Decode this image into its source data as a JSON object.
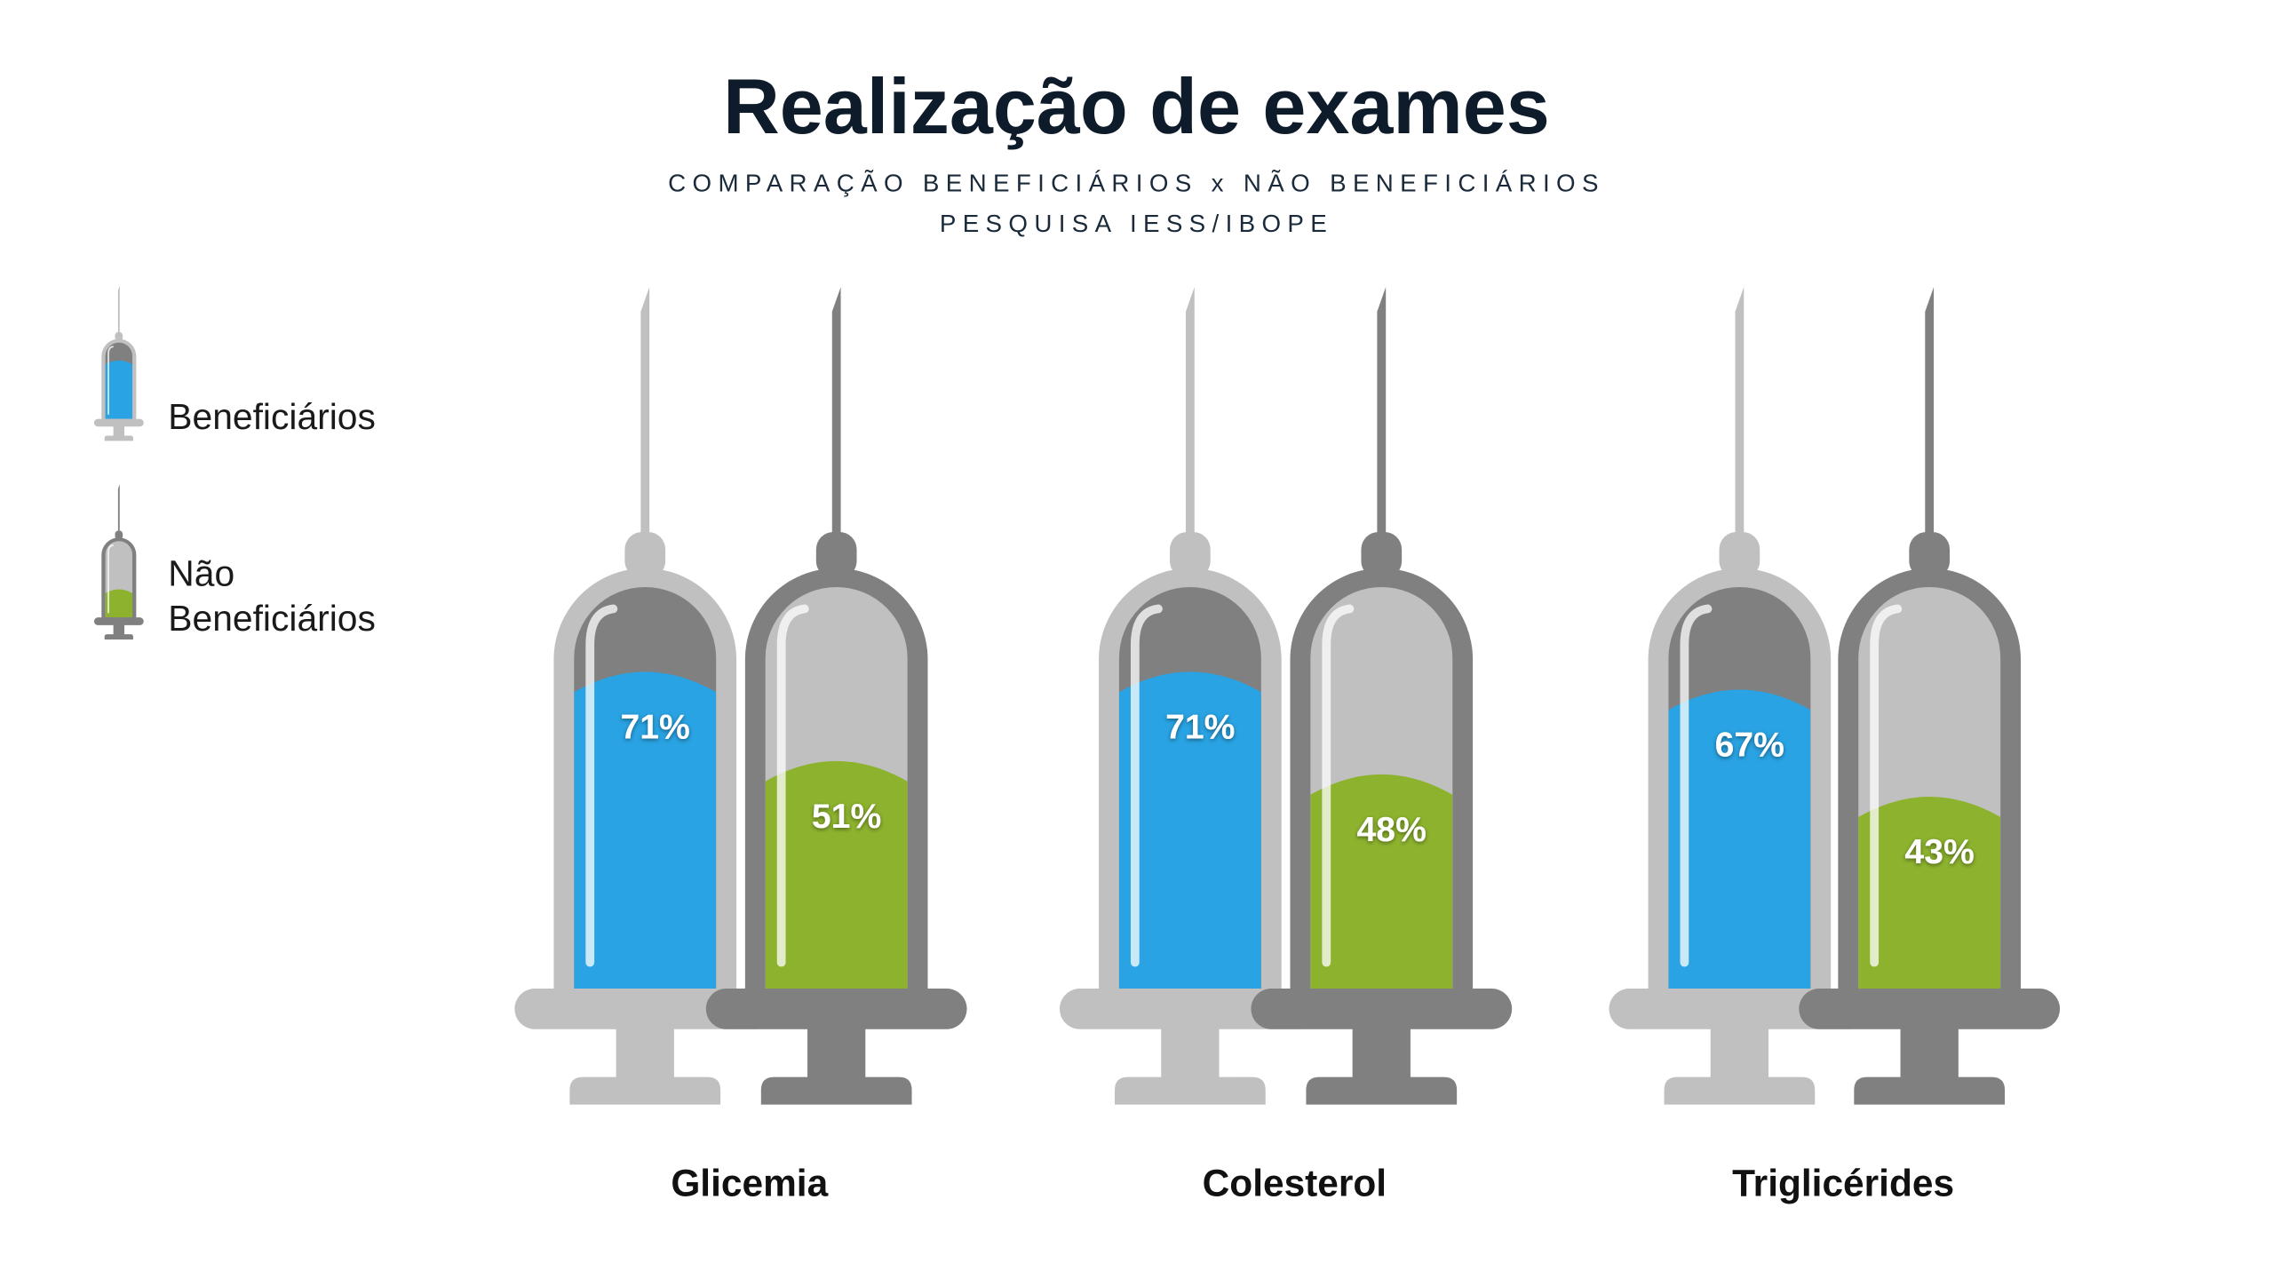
{
  "chart_data": {
    "type": "bar",
    "title": "Realização de exames",
    "subtitle": [
      "COMPARAÇÃO BENEFICIÁRIOS x NÃO BENEFICIÁRIOS",
      "PESQUISA IESS/IBOPE"
    ],
    "categories": [
      "Glicemia",
      "Colesterol",
      "Triglicérides"
    ],
    "series": [
      {
        "name": "Beneficiários",
        "color": "#29a3e3",
        "values": [
          71,
          71,
          67
        ],
        "value_labels": [
          "71%",
          "71%",
          "67%"
        ]
      },
      {
        "name": "Não Beneficiários",
        "color": "#8db32e",
        "values": [
          51,
          48,
          43
        ],
        "value_labels": [
          "51%",
          "48%",
          "43%"
        ]
      }
    ],
    "ylim": [
      0,
      90
    ],
    "legend": "left"
  }
}
